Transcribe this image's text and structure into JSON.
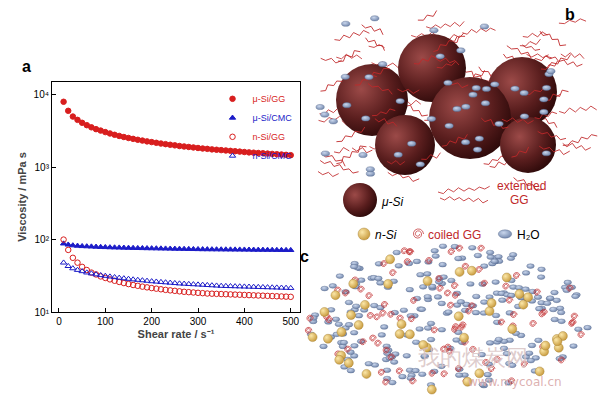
{
  "chart_data": {
    "type": "scatter",
    "xlabel": "Shear rate / s⁻¹",
    "ylabel": "Viscosity / mPa s",
    "x": [
      10,
      20,
      30,
      40,
      50,
      60,
      70,
      80,
      90,
      100,
      110,
      120,
      130,
      140,
      150,
      160,
      170,
      180,
      190,
      200,
      210,
      220,
      230,
      240,
      250,
      260,
      270,
      280,
      290,
      300,
      310,
      320,
      330,
      340,
      350,
      360,
      370,
      380,
      390,
      400,
      410,
      420,
      430,
      440,
      450,
      460,
      470,
      480,
      490,
      500
    ],
    "series": [
      {
        "name": "μ-Si/GG",
        "color": "#d81e1e",
        "marker": "circle",
        "values": [
          8000,
          6000,
          5000,
          4500,
          4100,
          3800,
          3550,
          3350,
          3200,
          3050,
          2920,
          2800,
          2700,
          2610,
          2530,
          2460,
          2390,
          2330,
          2270,
          2220,
          2170,
          2120,
          2080,
          2040,
          2000,
          1960,
          1930,
          1900,
          1870,
          1840,
          1810,
          1790,
          1760,
          1740,
          1720,
          1700,
          1680,
          1660,
          1640,
          1620,
          1600,
          1585,
          1570,
          1555,
          1540,
          1525,
          1510,
          1495,
          1480,
          1465
        ]
      },
      {
        "name": "μ-Si/CMC",
        "color": "#1c1cc8",
        "marker": "triangle-up",
        "values": [
          88,
          85,
          83,
          82,
          81,
          80.5,
          80,
          79.5,
          79,
          78.5,
          78,
          77.7,
          77.4,
          77.1,
          76.8,
          76.5,
          76.2,
          76,
          75.8,
          75.6,
          75.4,
          75.2,
          75,
          74.8,
          74.6,
          74.4,
          74.2,
          74,
          73.8,
          73.6,
          73.4,
          73.3,
          73.2,
          73.1,
          73,
          72.9,
          72.8,
          72.7,
          72.6,
          72.5,
          72.4,
          72.3,
          72.2,
          72.1,
          72,
          71.9,
          71.8,
          71.7,
          71.6,
          71.5
        ]
      },
      {
        "name": "n-Si/GG",
        "color": "#d81e1e",
        "marker": "circle-open",
        "values": [
          100,
          72,
          56,
          48,
          42,
          38,
          35,
          33,
          31,
          29.5,
          28.2,
          27,
          26,
          25.1,
          24.3,
          23.6,
          23,
          22.4,
          21.9,
          21.4,
          21,
          20.6,
          20.2,
          19.9,
          19.6,
          19.3,
          19,
          18.8,
          18.6,
          18.4,
          18.2,
          18,
          17.9,
          17.8,
          17.7,
          17.6,
          17.5,
          17.4,
          17.3,
          17.2,
          17.1,
          17,
          16.9,
          16.8,
          16.7,
          16.6,
          16.5,
          16.4,
          16.3,
          16.2
        ]
      },
      {
        "name": "n-Si/CMC",
        "color": "#1c1cc8",
        "marker": "triangle-up-open",
        "values": [
          48,
          43,
          40,
          38,
          36.5,
          35,
          34,
          33,
          32.2,
          31.5,
          30.8,
          30.2,
          29.6,
          29.1,
          28.6,
          28.1,
          27.7,
          27.3,
          26.9,
          26.5,
          26.2,
          25.9,
          25.6,
          25.3,
          25,
          24.7,
          24.5,
          24.3,
          24.1,
          23.9,
          23.7,
          23.5,
          23.3,
          23.1,
          22.9,
          22.8,
          22.7,
          22.6,
          22.5,
          22.4,
          22.3,
          22.2,
          22.1,
          22,
          21.9,
          21.8,
          21.7,
          21.6,
          21.5,
          21.4
        ]
      }
    ],
    "xlim": [
      -15,
      520
    ],
    "xticks": [
      0,
      100,
      200,
      300,
      400,
      500
    ],
    "ylim": [
      10,
      15000
    ],
    "yticks": [
      {
        "value": 10,
        "label": "10¹"
      },
      {
        "value": 100,
        "label": "10²"
      },
      {
        "value": 1000,
        "label": "10³"
      },
      {
        "value": 10000,
        "label": "10⁴"
      }
    ],
    "log": "y",
    "grid": false,
    "legend": "top right"
  },
  "diagram": {
    "panel_labels": [
      "a",
      "b",
      "c"
    ],
    "legend": {
      "micro_si": "μ-Si",
      "extended_gg": [
        "extended",
        "GG"
      ],
      "nano_si": "n-Si",
      "coiled_gg": "coiled GG",
      "water": "H₂O"
    },
    "watermark": [
      "我的煤炭网",
      "www.mycoal.cn"
    ]
  }
}
